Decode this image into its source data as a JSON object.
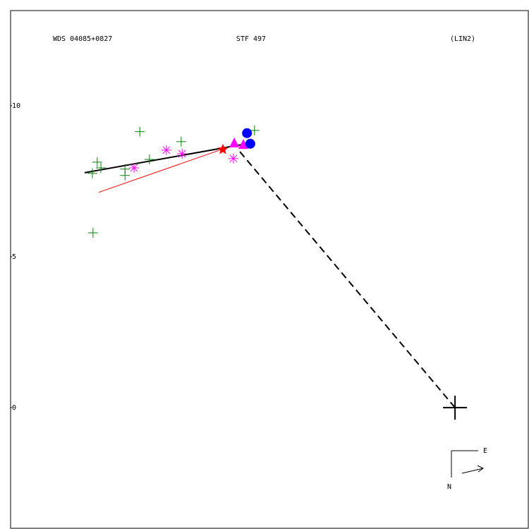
{
  "chart_data": {
    "type": "scatter",
    "title": "STF 497",
    "annotations": [
      "WDS 04085+0827",
      "(LIN2)"
    ],
    "compass": [
      "E",
      "N"
    ],
    "xlim": [
      -14.72,
      2.45
    ],
    "ylim": [
      -4.02,
      13.15
    ],
    "yticks": [
      0,
      5,
      10
    ],
    "series": [
      {
        "marker": "line",
        "dash": false,
        "color": "#000000",
        "x": [
          -12.27,
          -6.78
        ],
        "y": [
          7.78,
          8.76
        ]
      },
      {
        "marker": "line",
        "dash": false,
        "color": "#ff0000",
        "x": [
          -11.8,
          -7.59
        ],
        "y": [
          7.13,
          8.6
        ]
      },
      {
        "marker": "line",
        "dash": true,
        "color": "#000000",
        "x": [
          0,
          -7.17
        ],
        "y": [
          0,
          8.53
        ]
      },
      {
        "marker": "plus",
        "color": "#008000",
        "x": [
          -11.99,
          -12.01,
          -11.85,
          -11.73,
          -10.93,
          -10.93,
          -10.44,
          -10.12,
          -9.07,
          -6.64
        ],
        "y": [
          5.79,
          7.76,
          8.13,
          7.94,
          7.69,
          7.9,
          9.14,
          8.22,
          8.81,
          9.18
        ]
      },
      {
        "marker": "asterisk",
        "color": "#ff00ff",
        "x": [
          -10.63,
          -9.56,
          -9.04,
          -7.34
        ],
        "y": [
          7.94,
          8.53,
          8.41,
          8.25
        ]
      },
      {
        "marker": "triangle",
        "color": "#ff00ff",
        "x": [
          -7.31,
          -7.01
        ],
        "y": [
          8.76,
          8.71
        ]
      },
      {
        "marker": "circle",
        "color": "#0000ff",
        "x": [
          -6.89,
          -6.78
        ],
        "y": [
          9.09,
          8.74
        ]
      },
      {
        "marker": "star",
        "color": "#ff0000",
        "x": [
          -7.69
        ],
        "y": [
          8.55
        ]
      },
      {
        "marker": "bigplus",
        "color": "#000000",
        "x": [
          0
        ],
        "y": [
          0
        ]
      }
    ]
  }
}
